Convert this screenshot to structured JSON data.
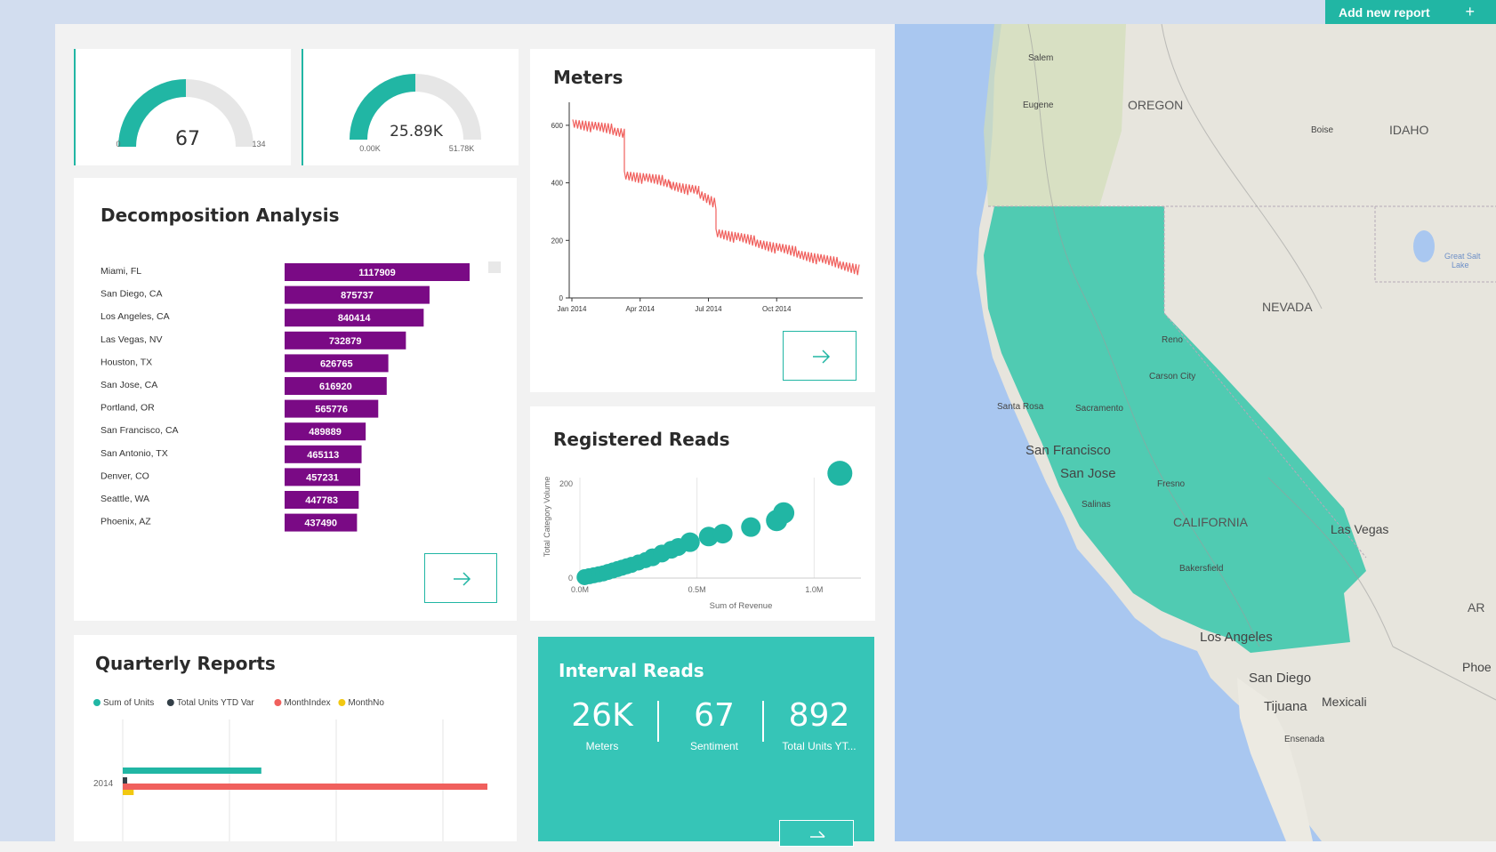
{
  "toolbar": {
    "add_report_label": "Add new report",
    "add_icon": "plus-icon"
  },
  "gauges": [
    {
      "value": "67",
      "min": "0",
      "max": "134",
      "fill": 0.5
    },
    {
      "value": "25.89K",
      "min": "0.00K",
      "max": "51.78K",
      "fill": 0.5
    }
  ],
  "decomposition": {
    "title": "Decomposition Analysis",
    "rows": [
      {
        "label": "Miami, FL",
        "value": "1117909"
      },
      {
        "label": "San Diego, CA",
        "value": "875737"
      },
      {
        "label": "Los Angeles, CA",
        "value": "840414"
      },
      {
        "label": "Las Vegas, NV",
        "value": "732879"
      },
      {
        "label": "Houston, TX",
        "value": "626765"
      },
      {
        "label": "San Jose, CA",
        "value": "616920"
      },
      {
        "label": "Portland, OR",
        "value": "565776"
      },
      {
        "label": "San Francisco, CA",
        "value": "489889"
      },
      {
        "label": "San Antonio, TX",
        "value": "465113"
      },
      {
        "label": "Denver, CO",
        "value": "457231"
      },
      {
        "label": "Seattle, WA",
        "value": "447783"
      },
      {
        "label": "Phoenix, AZ",
        "value": "437490"
      }
    ],
    "bar_color": "#7a0a85"
  },
  "meters": {
    "title": "Meters"
  },
  "registered": {
    "title": "Registered Reads"
  },
  "quarterly": {
    "title": "Quarterly Reports",
    "legend": [
      {
        "name": "Sum of Units",
        "color": "#21b6a4"
      },
      {
        "name": "Total Units YTD Var",
        "color": "#333f48"
      },
      {
        "name": "MonthIndex",
        "color": "#f0605d"
      },
      {
        "name": "MonthNo",
        "color": "#f2c811"
      }
    ]
  },
  "interval": {
    "title": "Interval Reads",
    "kpis": [
      {
        "value": "26K",
        "label": "Meters"
      },
      {
        "value": "67",
        "label": "Sentiment"
      },
      {
        "value": "892",
        "label": "Total Units YT..."
      }
    ]
  },
  "map": {
    "labels": {
      "salem": "Salem",
      "eugene": "Eugene",
      "oregon": "OREGON",
      "boise": "Boise",
      "idaho": "IDAHO",
      "great_salt": "Great Salt",
      "lake": "Lake",
      "nevada": "NEVADA",
      "reno": "Reno",
      "carson": "Carson City",
      "santa_rosa": "Santa Rosa",
      "sacramento": "Sacramento",
      "sf": "San Francisco",
      "sj": "San Jose",
      "fresno": "Fresno",
      "salinas": "Salinas",
      "california": "CALIFORNIA",
      "las_vegas": "Las Vegas",
      "bakersfield": "Bakersfield",
      "la": "Los Angeles",
      "ar": "AR",
      "phoe": "Phoe",
      "sd": "San Diego",
      "tijuana": "Tijuana",
      "mexicali": "Mexicali",
      "ensenada": "Ensenada"
    }
  },
  "chart_data": [
    {
      "type": "bar",
      "title": "Decomposition Analysis",
      "categories": [
        "Miami, FL",
        "San Diego, CA",
        "Los Angeles, CA",
        "Las Vegas, NV",
        "Houston, TX",
        "San Jose, CA",
        "Portland, OR",
        "San Francisco, CA",
        "San Antonio, TX",
        "Denver, CO",
        "Seattle, WA",
        "Phoenix, AZ"
      ],
      "values": [
        1117909,
        875737,
        840414,
        732879,
        626765,
        616920,
        565776,
        489889,
        465113,
        457231,
        447783,
        437490
      ]
    },
    {
      "type": "line",
      "title": "Meters",
      "xticks": [
        "Jan 2014",
        "Apr 2014",
        "Jul 2014",
        "Oct 2014"
      ],
      "yticks": [
        "0",
        "200",
        "400",
        "600"
      ],
      "ylim": [
        0,
        680
      ],
      "color": "#f0605d",
      "segments": [
        {
          "x0": 0.0,
          "x1": 0.18,
          "y0": 610,
          "y1": 575
        },
        {
          "x0": 0.18,
          "x1": 0.34,
          "y0": 430,
          "y1": 400
        },
        {
          "x0": 0.34,
          "x1": 0.44,
          "y0": 395,
          "y1": 370
        },
        {
          "x0": 0.44,
          "x1": 0.5,
          "y0": 365,
          "y1": 330
        },
        {
          "x0": 0.5,
          "x1": 1.0,
          "y0": 230,
          "y1": 100
        }
      ]
    },
    {
      "type": "scatter",
      "title": "Registered Reads",
      "xlabel": "Sum of Revenue",
      "ylabel": "Total Category Volume",
      "xticks": [
        "0.0M",
        "0.5M",
        "1.0M"
      ],
      "yticks": [
        "0",
        "200"
      ],
      "xlim": [
        0,
        1.2
      ],
      "ylim": [
        0,
        260
      ],
      "points": [
        [
          0.02,
          2,
          6
        ],
        [
          0.04,
          4,
          6
        ],
        [
          0.06,
          6,
          6
        ],
        [
          0.08,
          8,
          6
        ],
        [
          0.1,
          10,
          6
        ],
        [
          0.12,
          13,
          6
        ],
        [
          0.14,
          16,
          6
        ],
        [
          0.16,
          19,
          6
        ],
        [
          0.18,
          22,
          6
        ],
        [
          0.2,
          25,
          6
        ],
        [
          0.22,
          28,
          6
        ],
        [
          0.25,
          33,
          6
        ],
        [
          0.28,
          38,
          6
        ],
        [
          0.31,
          44,
          7
        ],
        [
          0.35,
          52,
          7
        ],
        [
          0.39,
          60,
          7
        ],
        [
          0.42,
          66,
          7
        ],
        [
          0.47,
          76,
          8
        ],
        [
          0.55,
          88,
          8
        ],
        [
          0.61,
          94,
          8
        ],
        [
          0.73,
          108,
          8
        ],
        [
          0.84,
          122,
          9
        ],
        [
          0.87,
          138,
          9
        ],
        [
          1.11,
          222,
          11
        ]
      ]
    },
    {
      "type": "bar",
      "title": "Quarterly Reports",
      "categories": [
        "2014"
      ],
      "series": [
        {
          "name": "Sum of Units",
          "values": [
            0.38
          ]
        },
        {
          "name": "Total Units YTD Var",
          "values": [
            0.01
          ]
        },
        {
          "name": "MonthIndex",
          "values": [
            1.0
          ]
        },
        {
          "name": "MonthNo",
          "values": [
            0.03
          ]
        }
      ]
    }
  ]
}
